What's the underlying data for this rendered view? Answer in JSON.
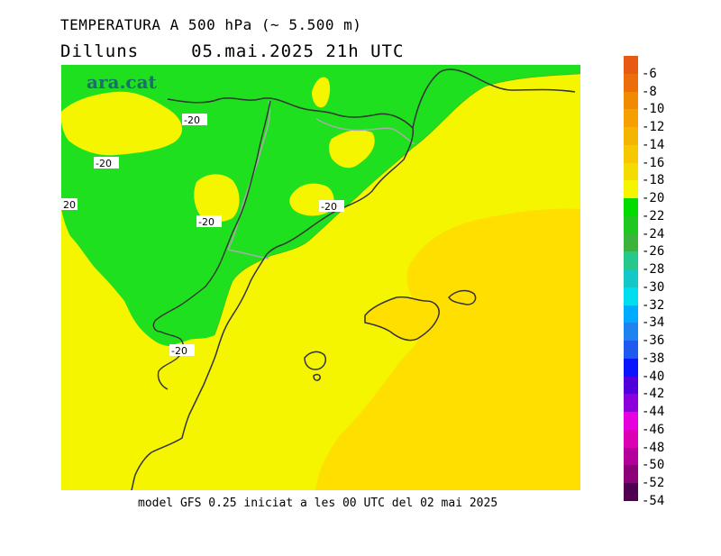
{
  "header": {
    "title": "TEMPERATURA A 500 hPa (~ 5.500 m)",
    "day": "Dilluns",
    "datetime": "05.mai.2025 21h UTC"
  },
  "logo_text": "ara.cat",
  "footer": "model GFS 0.25 iniciat a les 00 UTC del 02 mai 2025",
  "contour_labels": [
    "-20",
    "-20",
    "20",
    "-20",
    "-20",
    "-20"
  ],
  "colors": {
    "green_band": "#1fe01f",
    "yellow_band": "#f5f500",
    "gold_band": "#ffdf00",
    "coast": "#333333",
    "border": "#aaaaaa"
  },
  "legend": {
    "labels": [
      "-6",
      "-8",
      "-10",
      "-12",
      "-14",
      "-16",
      "-18",
      "-20",
      "-22",
      "-24",
      "-26",
      "-28",
      "-30",
      "-32",
      "-34",
      "-36",
      "-38",
      "-40",
      "-42",
      "-44",
      "-46",
      "-48",
      "-50",
      "-52",
      "-54"
    ],
    "colors": [
      "#e65a14",
      "#ec6e0a",
      "#f08a00",
      "#f5a000",
      "#f5b400",
      "#f5c800",
      "#f5dc00",
      "#f5f500",
      "#00dc00",
      "#1fc81f",
      "#3cb43c",
      "#28c88c",
      "#14c8c8",
      "#00dcf0",
      "#00aaff",
      "#1e82f0",
      "#1e5af0",
      "#0a14ff",
      "#5000dc",
      "#8c00dc",
      "#e600dc",
      "#dc00b4",
      "#b4009b",
      "#8c0078",
      "#500050"
    ]
  }
}
